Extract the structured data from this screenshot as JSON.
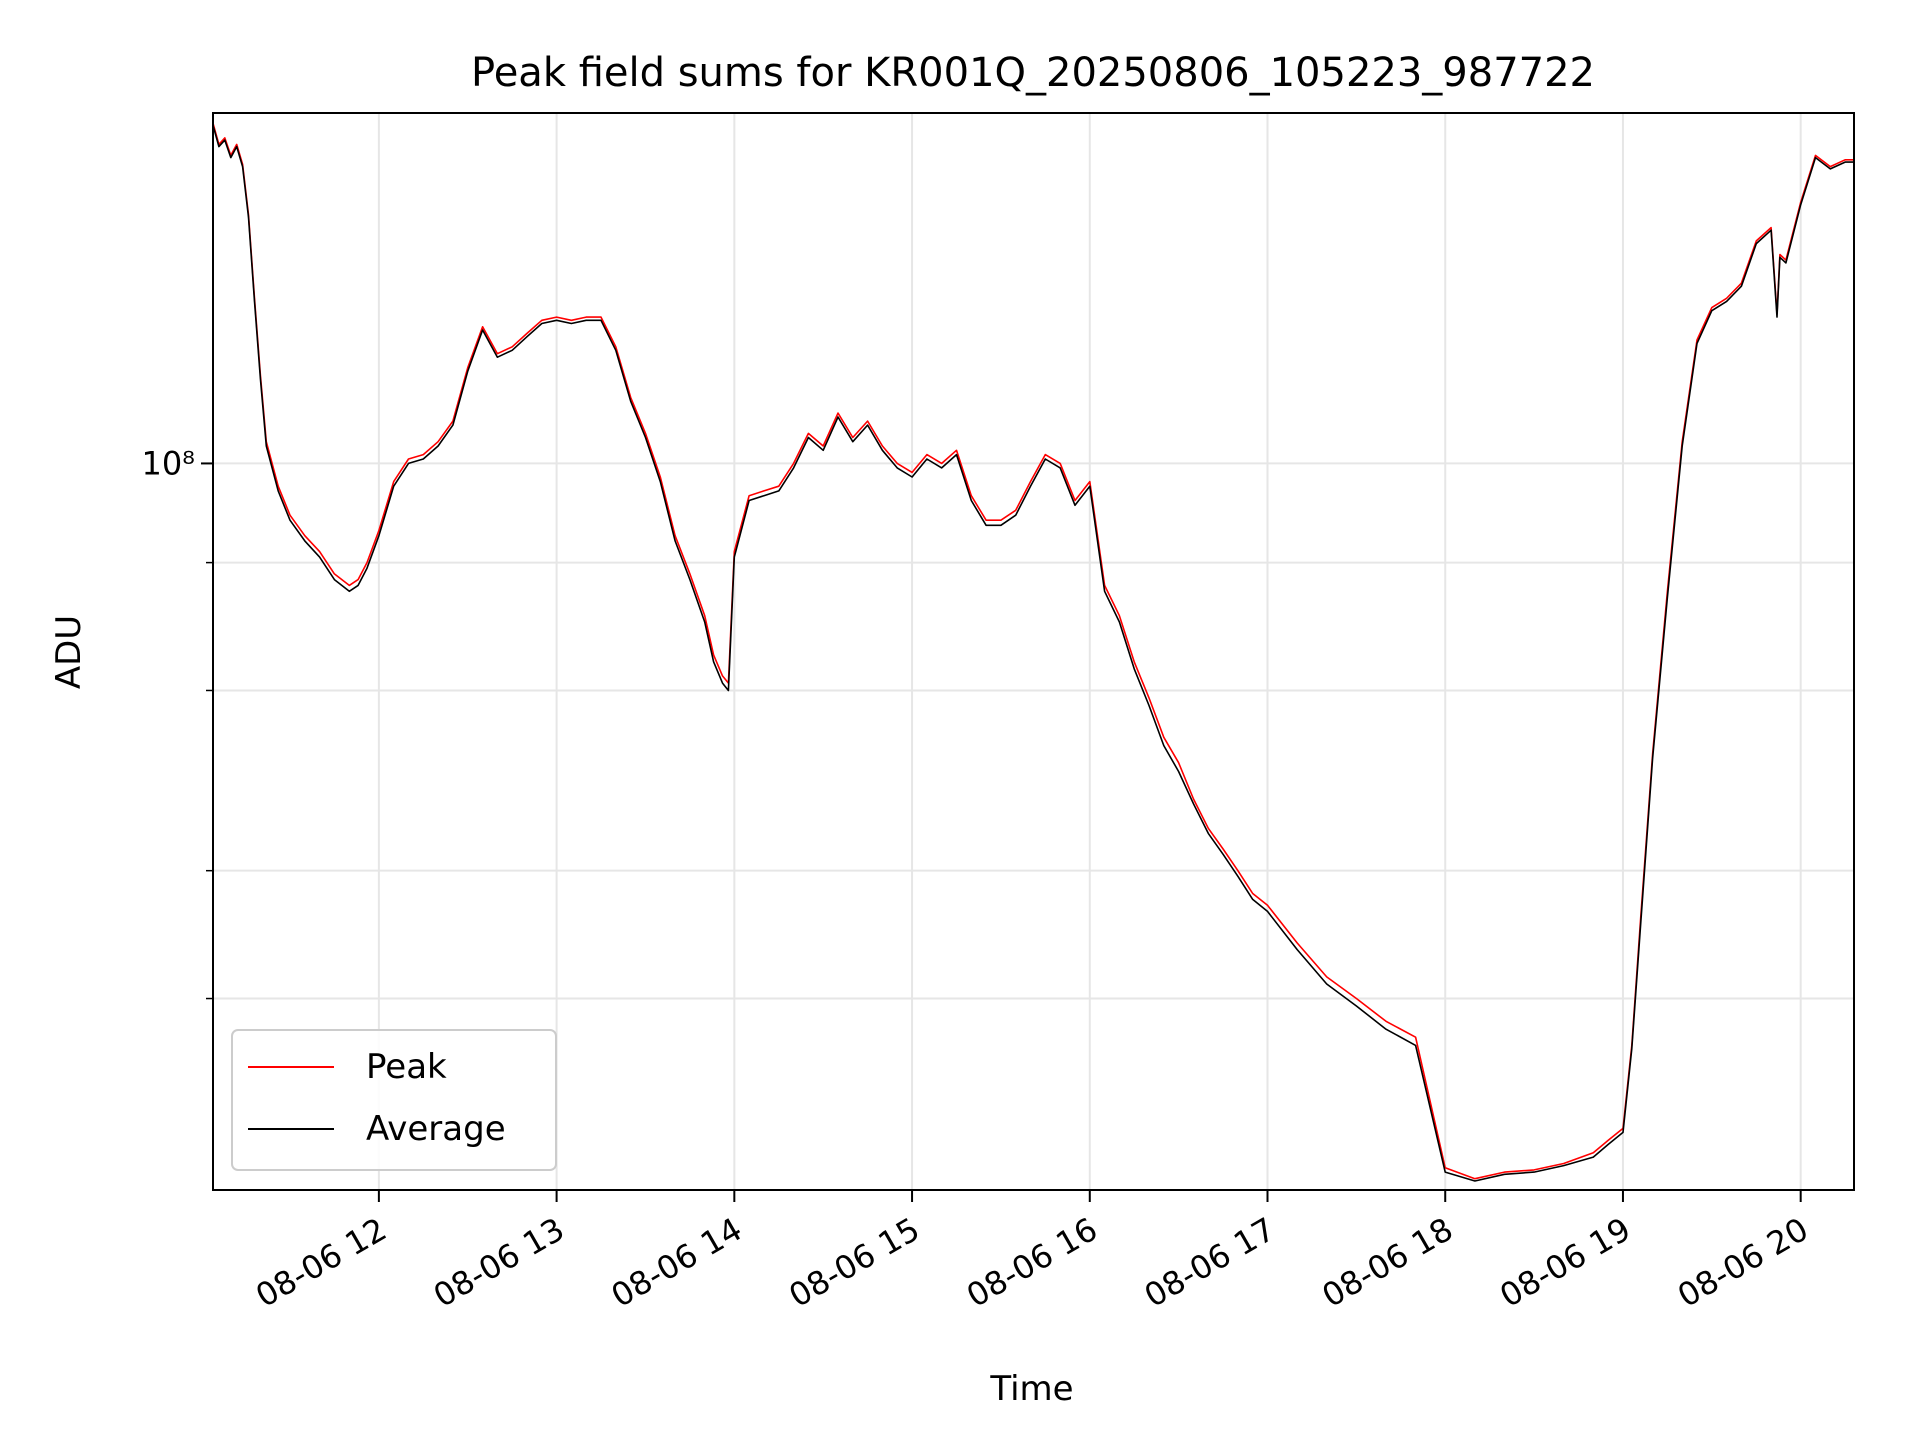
{
  "chart_data": {
    "type": "line",
    "title": "Peak field sums for KR001Q_20250806_105223_987722",
    "xlabel": "Time",
    "ylabel": "ADU",
    "y_scale": "log",
    "xlim": [
      "08-06 11:04",
      "08-06 20:18"
    ],
    "ylim": [
      19500000,
      220000000
    ],
    "grid": true,
    "legend_position": "lower-left",
    "x_ticks": [
      "08-06 12",
      "08-06 13",
      "08-06 14",
      "08-06 15",
      "08-06 16",
      "08-06 17",
      "08-06 18",
      "08-06 19",
      "08-06 20"
    ],
    "y_major_tick": "10⁸",
    "y_minor_ticks": [
      30000000,
      40000000,
      60000000,
      80000000
    ],
    "x": [
      "11:04",
      "11:06",
      "11:08",
      "11:10",
      "11:12",
      "11:14",
      "11:16",
      "11:18",
      "11:20",
      "11:22",
      "11:26",
      "11:30",
      "11:35",
      "11:40",
      "11:45",
      "11:50",
      "11:53",
      "11:56",
      "12:00",
      "12:05",
      "12:10",
      "12:15",
      "12:20",
      "12:25",
      "12:30",
      "12:35",
      "12:40",
      "12:45",
      "12:50",
      "12:55",
      "13:00",
      "13:05",
      "13:10",
      "13:15",
      "13:20",
      "13:25",
      "13:30",
      "13:35",
      "13:40",
      "13:45",
      "13:50",
      "13:53",
      "13:56",
      "13:58",
      "14:00",
      "14:05",
      "14:10",
      "14:15",
      "14:20",
      "14:25",
      "14:30",
      "14:35",
      "14:40",
      "14:45",
      "14:50",
      "14:55",
      "15:00",
      "15:05",
      "15:10",
      "15:15",
      "15:20",
      "15:25",
      "15:30",
      "15:35",
      "15:40",
      "15:45",
      "15:50",
      "15:55",
      "16:00",
      "16:05",
      "16:10",
      "16:15",
      "16:20",
      "16:25",
      "16:30",
      "16:35",
      "16:40",
      "16:45",
      "16:50",
      "16:55",
      "17:00",
      "17:10",
      "17:20",
      "17:30",
      "17:40",
      "17:50",
      "18:00",
      "18:10",
      "18:20",
      "18:30",
      "18:40",
      "18:50",
      "18:55",
      "19:00",
      "19:03",
      "19:06",
      "19:10",
      "19:15",
      "19:20",
      "19:25",
      "19:30",
      "19:35",
      "19:40",
      "19:45",
      "19:50",
      "19:52",
      "19:53",
      "19:55",
      "20:00",
      "20:05",
      "20:10",
      "20:15",
      "20:18"
    ],
    "series": [
      {
        "name": "Peak",
        "color": "#ff0000",
        "values": [
          215000000,
          205000000,
          208000000,
          200000000,
          205000000,
          196000000,
          175000000,
          145000000,
          122000000,
          105000000,
          95000000,
          89000000,
          85000000,
          82000000,
          78000000,
          76000000,
          77000000,
          80000000,
          86000000,
          96000000,
          101000000,
          102000000,
          105000000,
          110000000,
          124000000,
          136000000,
          128000000,
          130000000,
          134000000,
          138000000,
          139000000,
          138000000,
          139000000,
          139000000,
          130000000,
          116000000,
          107000000,
          97000000,
          85000000,
          78000000,
          71000000,
          65000000,
          62000000,
          61000000,
          82000000,
          93000000,
          94000000,
          95000000,
          100000000,
          107000000,
          104000000,
          112000000,
          106000000,
          110000000,
          104000000,
          100000000,
          98000000,
          102000000,
          100000000,
          103000000,
          93000000,
          88000000,
          88000000,
          90000000,
          96000000,
          102000000,
          100000000,
          92000000,
          96000000,
          76000000,
          71000000,
          64000000,
          59000000,
          54000000,
          51000000,
          47000000,
          44000000,
          42000000,
          40000000,
          38000000,
          37000000,
          34000000,
          31500000,
          30000000,
          28500000,
          27500000,
          20500000,
          20000000,
          20300000,
          20400000,
          20700000,
          21200000,
          21800000,
          22400000,
          27000000,
          36000000,
          52000000,
          75000000,
          105000000,
          132000000,
          142000000,
          145000000,
          150000000,
          165000000,
          170000000,
          140000000,
          160000000,
          158000000,
          180000000,
          200000000,
          195000000,
          198000000,
          198000000
        ]
      },
      {
        "name": "Average",
        "color": "#000000",
        "values": [
          214000000,
          204000000,
          207000000,
          199000000,
          204000000,
          195000000,
          174000000,
          144000000,
          121000000,
          104000000,
          94000000,
          88000000,
          84000000,
          81000000,
          77000000,
          75000000,
          76000000,
          79000000,
          85000000,
          95000000,
          100000000,
          101000000,
          104000000,
          109000000,
          123000000,
          135000000,
          127000000,
          129000000,
          133000000,
          137000000,
          138000000,
          137000000,
          138000000,
          138000000,
          129000000,
          115000000,
          106000000,
          96000000,
          84000000,
          77000000,
          70000000,
          64000000,
          61000000,
          60000000,
          81000000,
          92000000,
          93000000,
          94000000,
          99000000,
          106000000,
          103000000,
          111000000,
          105000000,
          109000000,
          103000000,
          99000000,
          97000000,
          101000000,
          99000000,
          102000000,
          92000000,
          87000000,
          87000000,
          89000000,
          95000000,
          101000000,
          99000000,
          91000000,
          95000000,
          75000000,
          70000000,
          63000000,
          58000000,
          53000000,
          50000000,
          46500000,
          43500000,
          41500000,
          39500000,
          37500000,
          36500000,
          33500000,
          31000000,
          29500000,
          28000000,
          27000000,
          20300000,
          19900000,
          20200000,
          20300000,
          20600000,
          21000000,
          21600000,
          22200000,
          26800000,
          35500000,
          51500000,
          74000000,
          104000000,
          131000000,
          141000000,
          144000000,
          149000000,
          164000000,
          169000000,
          139000000,
          159000000,
          157000000,
          179000000,
          199000000,
          194000000,
          197000000,
          197000000
        ]
      }
    ]
  }
}
